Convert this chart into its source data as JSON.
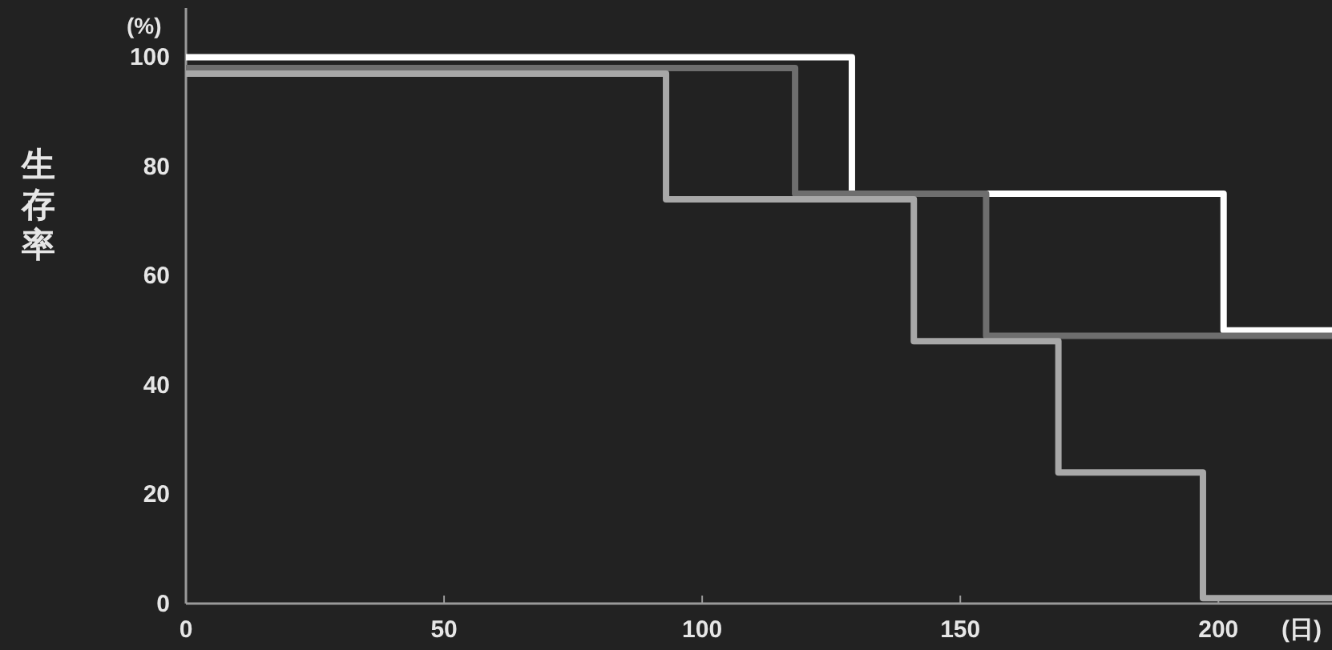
{
  "chart_data": {
    "type": "step",
    "ylabel": "生存率",
    "xlabel": "(日)",
    "annotations": [
      "(%)"
    ],
    "xlim": [
      0,
      222
    ],
    "ylim": [
      0,
      109
    ],
    "xticks": [
      0,
      50,
      100,
      150,
      200
    ],
    "yticks": [
      0,
      20,
      40,
      60,
      80,
      100
    ],
    "grid": false,
    "line_style": "solid",
    "series": [
      {
        "color": "#ffffff",
        "x": [
          0,
          129,
          201,
          222
        ],
        "values": [
          100,
          75,
          50,
          50
        ]
      },
      {
        "color": "#6e6e6e",
        "x": [
          0,
          118,
          155,
          222
        ],
        "values": [
          98,
          75,
          49,
          49
        ]
      },
      {
        "color": "#a8a8a8",
        "x": [
          0,
          93,
          141,
          169,
          197,
          222
        ],
        "values": [
          97,
          74,
          48,
          24,
          1,
          1
        ]
      }
    ]
  }
}
